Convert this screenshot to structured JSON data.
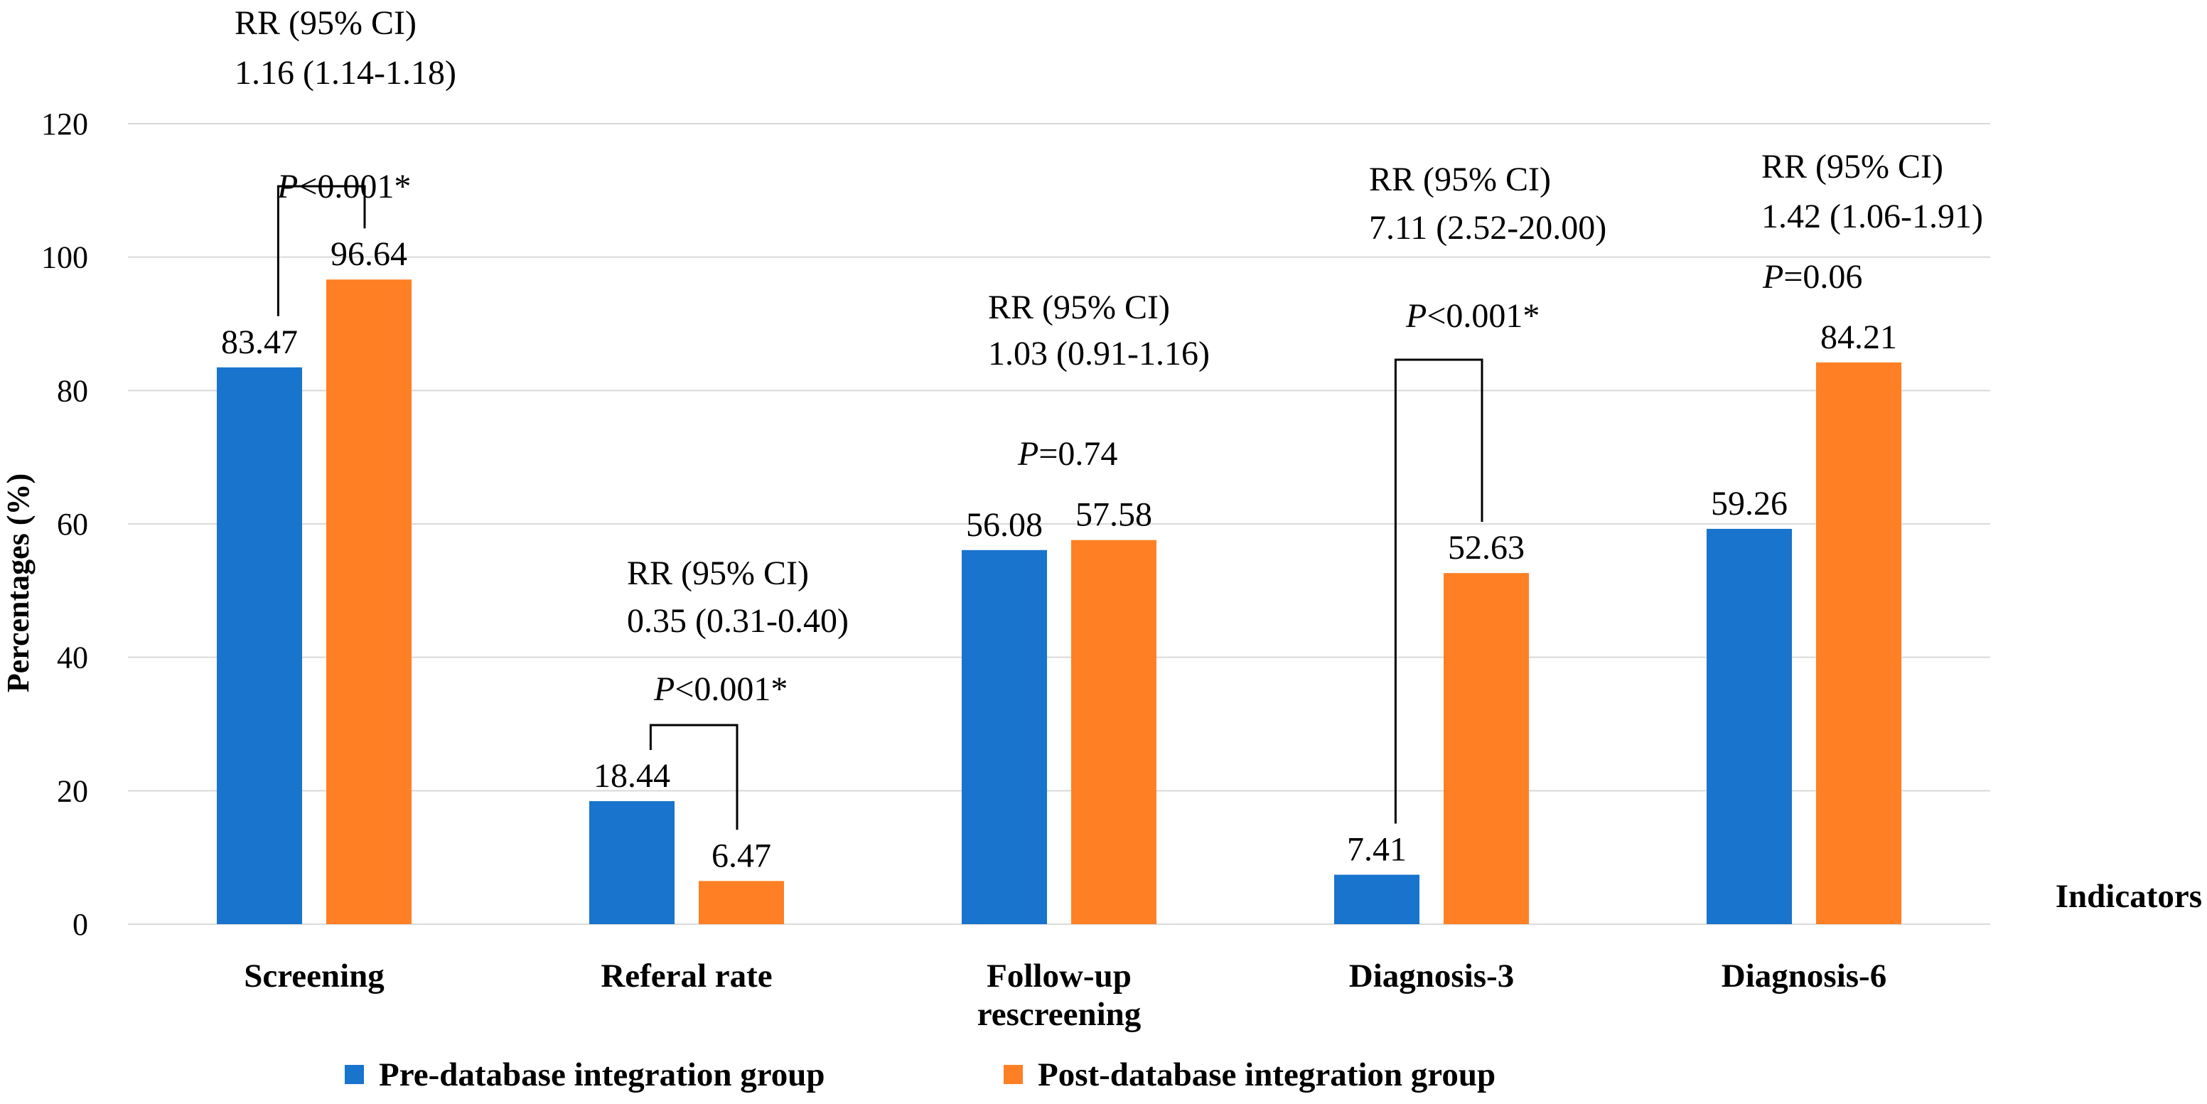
{
  "chart_data": {
    "type": "bar",
    "categories": [
      [
        "Screening"
      ],
      [
        "Referal rate"
      ],
      [
        "Follow-up",
        "rescreening"
      ],
      [
        "Diagnosis-3"
      ],
      [
        "Diagnosis-6"
      ]
    ],
    "series": [
      {
        "name": "Pre-database integration group",
        "color": "#1874CD",
        "values": [
          83.47,
          18.44,
          56.08,
          7.41,
          59.26
        ],
        "labels": [
          "83.47",
          "18.44",
          "56.08",
          "7.41",
          "59.26"
        ]
      },
      {
        "name": "Post-database integration  group",
        "color": "#FF7F24",
        "values": [
          96.64,
          6.47,
          57.58,
          52.63,
          84.21
        ],
        "labels": [
          "96.64",
          "6.47",
          "57.58",
          "52.63",
          "84.21"
        ]
      }
    ],
    "ylim": [
      0,
      120
    ],
    "yticks": [
      0,
      20,
      40,
      60,
      80,
      100,
      120
    ],
    "ylabel": "Percentages (%)",
    "xlabel": "Indicators",
    "grid": "horizontal",
    "legend_position": "bottom",
    "annotations": [
      {
        "category": 0,
        "rr_title": "RR (95% CI)",
        "rr_value": "1.16 (1.14-1.18)",
        "p_symbol": "P",
        "p_rest": "<0.001*",
        "bracket": true
      },
      {
        "category": 1,
        "rr_title": "RR (95% CI)",
        "rr_value": "0.35 (0.31-0.40)",
        "p_symbol": "P",
        "p_rest": "<0.001*",
        "bracket": true
      },
      {
        "category": 2,
        "rr_title": "RR (95% CI)",
        "rr_value": "1.03 (0.91-1.16)",
        "p_symbol": "P",
        "p_rest": "=0.74",
        "bracket": false
      },
      {
        "category": 3,
        "rr_title": "RR (95% CI)",
        "rr_value": "7.11 (2.52-20.00)",
        "p_symbol": "P",
        "p_rest": "<0.001*",
        "bracket": true
      },
      {
        "category": 4,
        "rr_title": "RR (95% CI)",
        "rr_value": "1.42 (1.06-1.91)",
        "p_symbol": "P",
        "p_rest": "=0.06",
        "bracket": false
      }
    ]
  }
}
